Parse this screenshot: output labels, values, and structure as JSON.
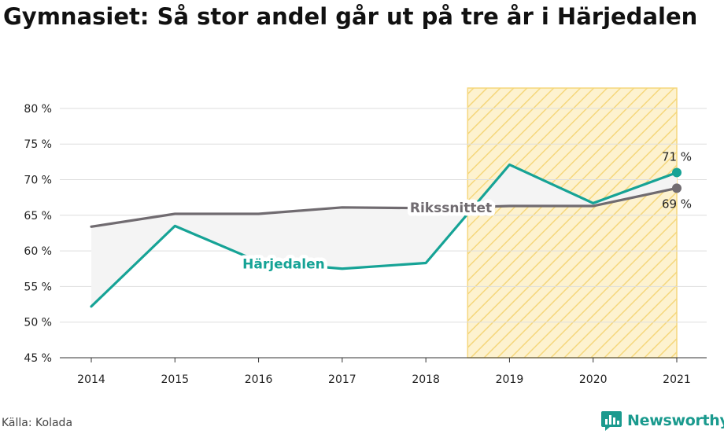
{
  "title": "Gymnasiet: Så stor andel går ut på tre år i Härjedalen",
  "source": "Källa: Kolada",
  "brand": "Newsworthy",
  "colors": {
    "harjedalen": "#16a396",
    "riks": "#706b70",
    "highlight_fill": "#fdf2cf",
    "highlight_stroke": "#f5d77c",
    "grid": "#dddddd",
    "band": "#f4f4f4",
    "brand": "#1a9a8e"
  },
  "chart_data": {
    "type": "line",
    "title": "Gymnasiet: Så stor andel går ut på tre år i Härjedalen",
    "x": [
      2014,
      2015,
      2016,
      2017,
      2018,
      2019,
      2020,
      2021
    ],
    "y_ticks": [
      "45 %",
      "50 %",
      "55 %",
      "60 %",
      "65 %",
      "70 %",
      "75 %",
      "80 %"
    ],
    "ylim": [
      45,
      82
    ],
    "grid": true,
    "highlight_x_range": [
      2018.5,
      2021
    ],
    "series": [
      {
        "name": "Härjedalen",
        "values": [
          52.2,
          63.5,
          58.5,
          57.5,
          58.3,
          72.1,
          66.7,
          71.0
        ],
        "end_label": "71 %"
      },
      {
        "name": "Rikssnittet",
        "values": [
          63.4,
          65.2,
          65.2,
          66.1,
          66.0,
          66.3,
          66.3,
          68.8
        ],
        "end_label": "69 %"
      }
    ]
  }
}
